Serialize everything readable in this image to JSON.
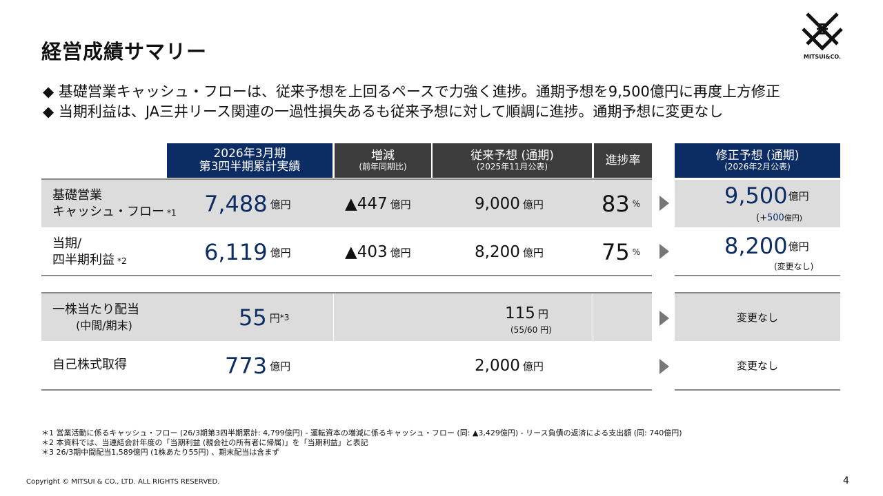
{
  "title": "経営成績サマリー",
  "bullets": [
    "◆ 基礎営業キャッシュ・フローは、従来予想を上回るペースで力強く進捗。通期予想を9,500億円に再度上方修正",
    "◆ 当期利益は、JA三井リース関連の一過性損失あるも従来予想に対して順調に進捗。通期予想に変更なし"
  ],
  "logo": {
    "text": "MITSUI&CO."
  },
  "headers": {
    "actual": {
      "main1": "2026年3月期",
      "main2": "第3四半期累計実績"
    },
    "change": {
      "main": "増減",
      "sub": "(前年同期比)"
    },
    "forecast": {
      "main": "従来予想 (通期)",
      "sub": "(2025年11月公表)"
    },
    "progress": {
      "main": "進捗率"
    },
    "revised": {
      "main": "修正予想 (通期)",
      "sub": "(2026年2月公表)"
    }
  },
  "rows": [
    {
      "label1": "基礎営業",
      "label2": "キャッシュ・フロー",
      "note": "*1",
      "actual": "7,488",
      "actual_unit": "億円",
      "change": "▲447",
      "change_unit": "億円",
      "forecast": "9,000",
      "forecast_unit": "億円",
      "progress": "83",
      "progress_unit": "%",
      "revised": "9,500",
      "revised_unit": "億円",
      "revised_sub_open": "(+",
      "revised_sub_val": "500",
      "revised_sub_close": " 億円)"
    },
    {
      "label1": "当期/",
      "label2": "四半期利益",
      "note": "*2",
      "actual": "6,119",
      "actual_unit": "億円",
      "change": "▲403",
      "change_unit": "億円",
      "forecast": "8,200",
      "forecast_unit": "億円",
      "progress": "75",
      "progress_unit": "%",
      "revised": "8,200",
      "revised_unit": "億円",
      "revised_sub": "(変更なし)"
    },
    {
      "label1": "一株当たり配当",
      "label2": "(中間/期末)",
      "actual": "55",
      "actual_unit": "円",
      "actual_note": "*3",
      "forecast": "115",
      "forecast_unit": "円",
      "forecast_sub": "(55/60 円)",
      "revised": "変更なし"
    },
    {
      "label1": "自己株式取得",
      "actual": "773",
      "actual_unit": "億円",
      "forecast": "2,000",
      "forecast_unit": "億円",
      "revised": "変更なし"
    }
  ],
  "notes": [
    "＊1 営業活動に係るキャッシュ・フロー (26/3期第3四半期累計: 4,799億円) - 運転資本の増減に係るキャッシュ・フロー (同: ▲3,429億円) - リース負債の返済による支出額 (同: 740億円)",
    "＊2 本資料では、当連結会計年度の「当期利益 (親会社の所有者に帰属)」を「当期利益」と表記",
    "＊3 26/3期中間配当1,589億円 (1株あたり55円) 、期末配当は含まず"
  ],
  "copyright": "Copyright © MITSUI & CO., LTD. ALL RIGHTS RESERVED.",
  "page_number": "4",
  "colors": {
    "navy": "#0c2c64",
    "dark_header": "#3c3c3c",
    "row_gray": "#dcdcdc"
  }
}
